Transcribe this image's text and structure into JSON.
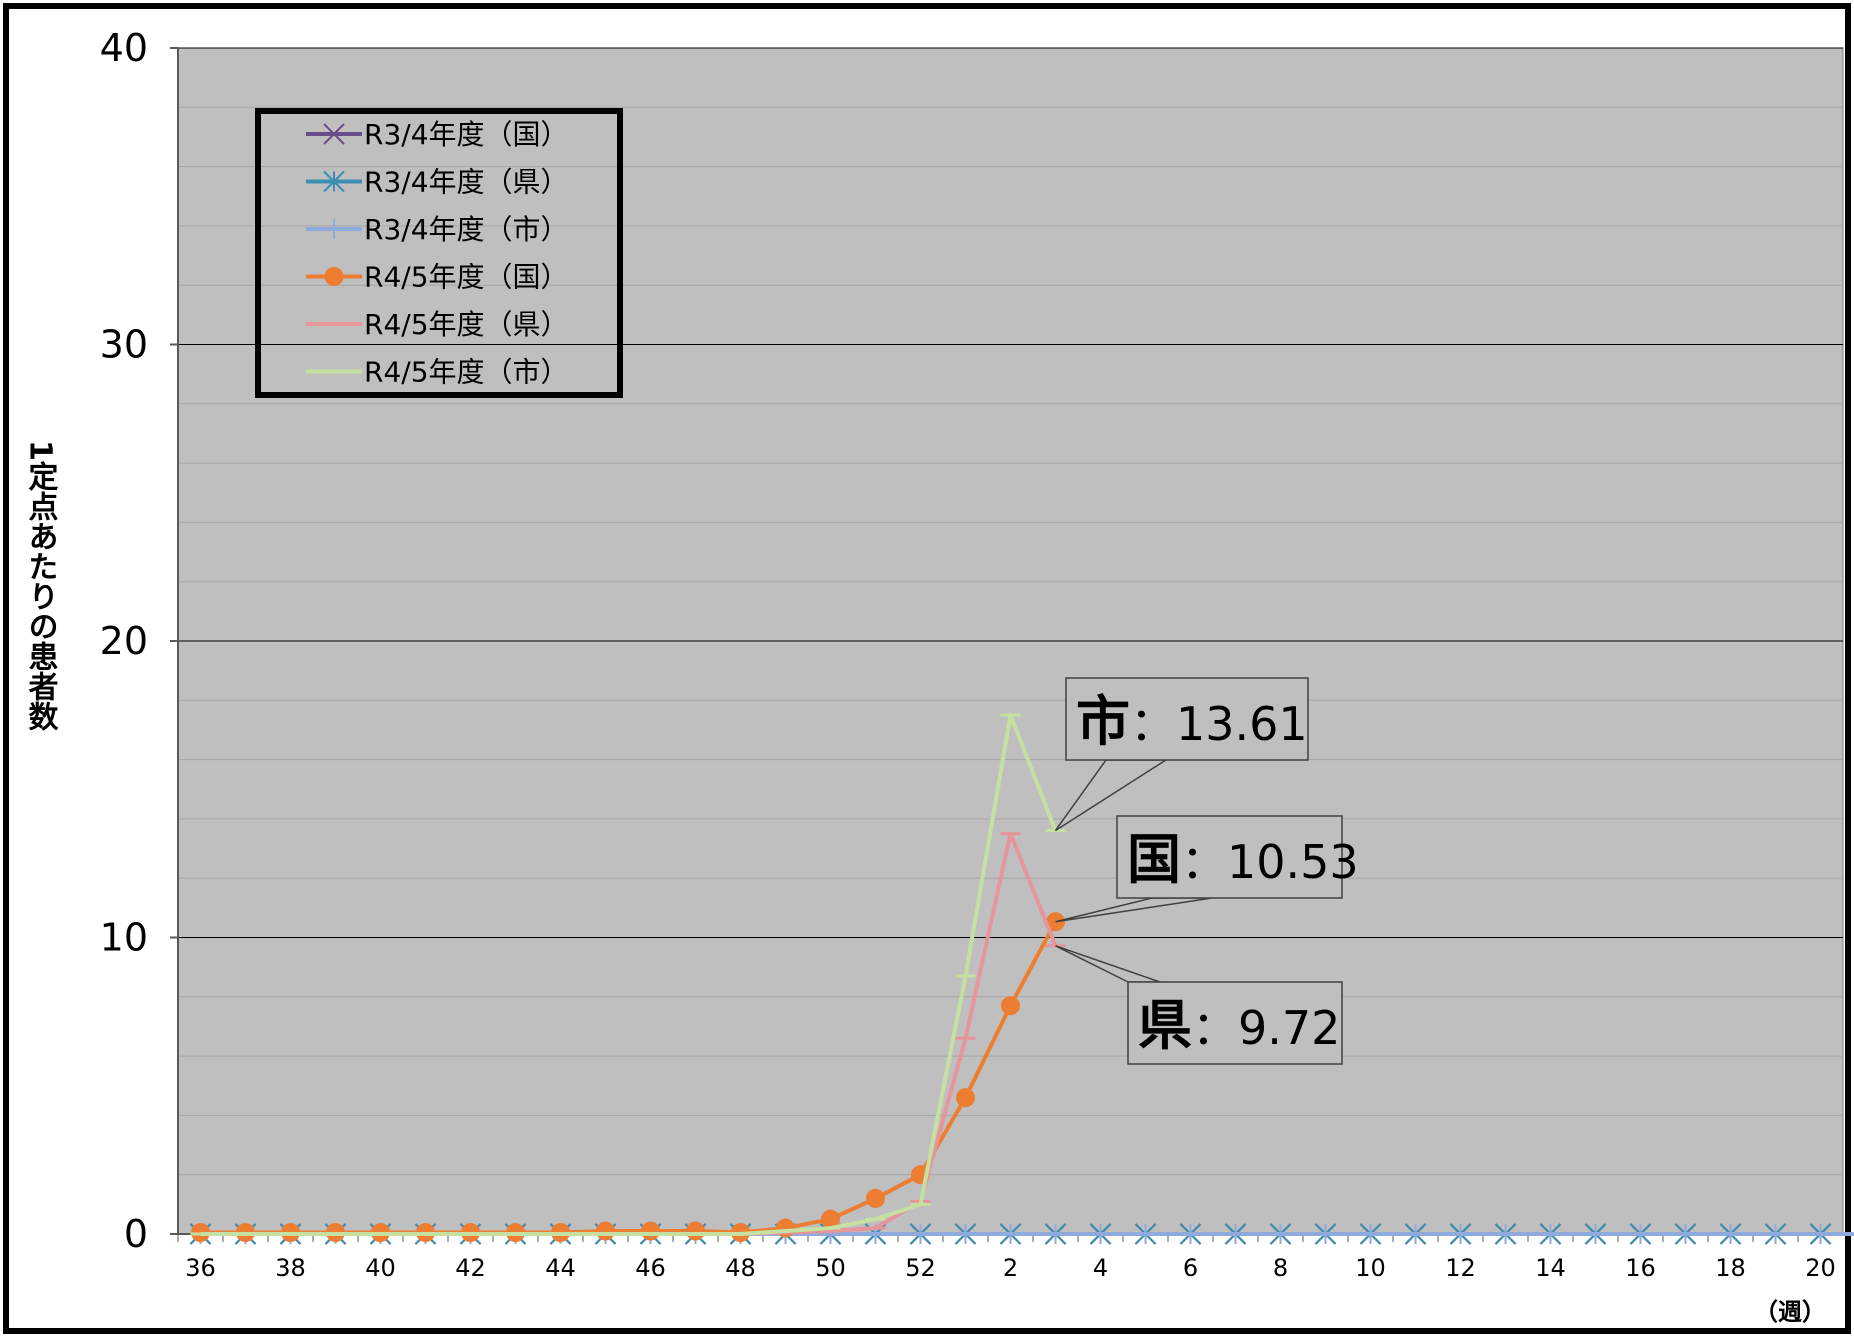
{
  "chart_data": {
    "type": "line",
    "title": "",
    "xlabel": "（週）",
    "ylabel": "1定点あたりの患者数",
    "ylim": [
      0,
      40
    ],
    "yticks": [
      0,
      10,
      20,
      30,
      40
    ],
    "grid": true,
    "legend_position": "top-left",
    "x_labels": [
      "36",
      "",
      "38",
      "",
      "40",
      "",
      "42",
      "",
      "44",
      "",
      "46",
      "",
      "48",
      "",
      "50",
      "",
      "52",
      "",
      "2",
      "",
      "4",
      "",
      "6",
      "",
      "8",
      "",
      "10",
      "",
      "12",
      "",
      "14",
      "",
      "16",
      "",
      "18",
      "",
      "20"
    ],
    "series": [
      {
        "name": "R3/4年度（国）",
        "color": "#6b4c8a",
        "marker": "x",
        "values": [
          0,
          0,
          0,
          0,
          0,
          0,
          0,
          0,
          0,
          0,
          0,
          0,
          0,
          0,
          0,
          0,
          0,
          0,
          0,
          0,
          0,
          0,
          0,
          0,
          0,
          0,
          0,
          0,
          0,
          0,
          0,
          0,
          0,
          0,
          0,
          0,
          0,
          0
        ]
      },
      {
        "name": "R3/4年度（県）",
        "color": "#3c8fb0",
        "marker": "asterisk",
        "values": [
          0,
          0,
          0,
          0,
          0,
          0,
          0,
          0,
          0,
          0,
          0,
          0,
          0,
          0,
          0,
          0,
          0,
          0,
          0,
          0,
          0,
          0,
          0,
          0,
          0,
          0,
          0,
          0,
          0,
          0,
          0,
          0,
          0,
          0,
          0,
          0,
          0,
          0
        ]
      },
      {
        "name": "R3/4年度（市）",
        "color": "#8faadc",
        "marker": "plus",
        "values": [
          0,
          0,
          0,
          0,
          0,
          0,
          0,
          0,
          0,
          0,
          0,
          0,
          0,
          0,
          0,
          0,
          0,
          0,
          0,
          0,
          0,
          0,
          0,
          0,
          0,
          0,
          0,
          0,
          0,
          0,
          0,
          0,
          0,
          0,
          0,
          0,
          0,
          0
        ]
      },
      {
        "name": "R4/5年度（国）",
        "color": "#ed7d31",
        "marker": "circle",
        "values": [
          0.05,
          0.05,
          0.05,
          0.05,
          0.05,
          0.05,
          0.05,
          0.05,
          0.05,
          0.1,
          0.1,
          0.1,
          0.05,
          0.2,
          0.5,
          1.2,
          2.0,
          4.6,
          7.7,
          10.53
        ]
      },
      {
        "name": "R4/5年度（県）",
        "color": "#e6959b",
        "marker": "dash",
        "values": [
          0,
          0,
          0,
          0,
          0,
          0,
          0,
          0,
          0,
          0,
          0,
          0,
          0,
          0.05,
          0.1,
          0.2,
          1.1,
          6.6,
          13.5,
          9.72
        ]
      },
      {
        "name": "R4/5年度（市）",
        "color": "#c5e0a0",
        "marker": "dash",
        "values": [
          0,
          0,
          0,
          0,
          0,
          0,
          0,
          0,
          0,
          0,
          0,
          0,
          0,
          0.1,
          0.2,
          0.5,
          1.0,
          8.7,
          17.5,
          13.61
        ]
      }
    ],
    "annotations": [
      {
        "label": "市",
        "text": "：13.61",
        "series_index": 5,
        "point_index": 19
      },
      {
        "label": "国",
        "text": "：10.53",
        "series_index": 3,
        "point_index": 19
      },
      {
        "label": "県",
        "text": "：9.72",
        "series_index": 4,
        "point_index": 19
      }
    ]
  }
}
